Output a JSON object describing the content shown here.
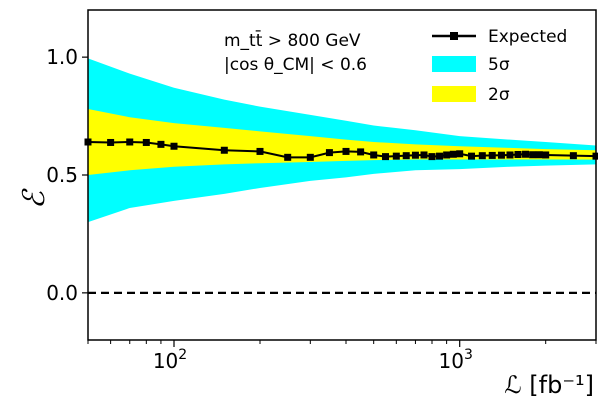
{
  "chart_data": {
    "type": "line",
    "xscale": "log",
    "xlim": [
      50,
      3000
    ],
    "ylim": [
      -0.2,
      1.2
    ],
    "xlabel": "ℒ [fb⁻¹]",
    "ylabel": "ℰ",
    "x_ticks": [
      {
        "value": 100,
        "base": "10",
        "exp": "2"
      },
      {
        "value": 1000,
        "base": "10",
        "exp": "3"
      }
    ],
    "y_ticks": [
      {
        "value": 0.0,
        "label": "0.0"
      },
      {
        "value": 0.5,
        "label": "0.5"
      },
      {
        "value": 1.0,
        "label": "1.0"
      }
    ],
    "annotations": [
      "m_tt̄ > 800 GeV",
      "|cos θ_CM| < 0.6"
    ],
    "reference_line": {
      "y": 0.0,
      "style": "dashed",
      "color": "#000000"
    },
    "series": [
      {
        "name": "Expected",
        "color": "#000000",
        "marker": "square",
        "points": [
          [
            50,
            0.64
          ],
          [
            60,
            0.638
          ],
          [
            70,
            0.64
          ],
          [
            80,
            0.638
          ],
          [
            90,
            0.63
          ],
          [
            100,
            0.622
          ],
          [
            150,
            0.605
          ],
          [
            200,
            0.6
          ],
          [
            250,
            0.575
          ],
          [
            300,
            0.575
          ],
          [
            350,
            0.595
          ],
          [
            400,
            0.6
          ],
          [
            450,
            0.598
          ],
          [
            500,
            0.585
          ],
          [
            550,
            0.578
          ],
          [
            600,
            0.58
          ],
          [
            650,
            0.582
          ],
          [
            700,
            0.584
          ],
          [
            750,
            0.585
          ],
          [
            800,
            0.578
          ],
          [
            850,
            0.58
          ],
          [
            900,
            0.585
          ],
          [
            950,
            0.588
          ],
          [
            1000,
            0.59
          ],
          [
            1100,
            0.58
          ],
          [
            1200,
            0.582
          ],
          [
            1300,
            0.583
          ],
          [
            1400,
            0.584
          ],
          [
            1500,
            0.585
          ],
          [
            1600,
            0.587
          ],
          [
            1700,
            0.588
          ],
          [
            1800,
            0.586
          ],
          [
            1900,
            0.586
          ],
          [
            2000,
            0.585
          ],
          [
            2500,
            0.582
          ],
          [
            3000,
            0.58
          ]
        ]
      }
    ],
    "bands": [
      {
        "name": "5σ",
        "color": "#00ffff",
        "x": [
          50,
          70,
          100,
          150,
          200,
          300,
          400,
          500,
          700,
          1000,
          1500,
          2000,
          3000
        ],
        "upper": [
          0.995,
          0.93,
          0.87,
          0.82,
          0.79,
          0.755,
          0.73,
          0.71,
          0.69,
          0.665,
          0.65,
          0.64,
          0.625
        ],
        "lower": [
          0.3,
          0.36,
          0.39,
          0.42,
          0.445,
          0.475,
          0.49,
          0.505,
          0.52,
          0.525,
          0.535,
          0.54,
          0.545
        ]
      },
      {
        "name": "2σ",
        "color": "#ffff00",
        "x": [
          50,
          70,
          100,
          150,
          200,
          300,
          400,
          500,
          700,
          1000,
          1500,
          2000,
          3000
        ],
        "upper": [
          0.78,
          0.745,
          0.72,
          0.7,
          0.685,
          0.665,
          0.65,
          0.64,
          0.63,
          0.622,
          0.615,
          0.61,
          0.605
        ],
        "lower": [
          0.5,
          0.52,
          0.535,
          0.545,
          0.55,
          0.555,
          0.56,
          0.563,
          0.566,
          0.566,
          0.566,
          0.566,
          0.565
        ]
      }
    ],
    "legend": {
      "placement": "top-right",
      "entries": [
        {
          "label": "Expected",
          "kind": "line-marker",
          "color": "#000000"
        },
        {
          "label": "5σ",
          "kind": "patch",
          "color": "#00ffff"
        },
        {
          "label": "2σ",
          "kind": "patch",
          "color": "#ffff00"
        }
      ]
    }
  }
}
